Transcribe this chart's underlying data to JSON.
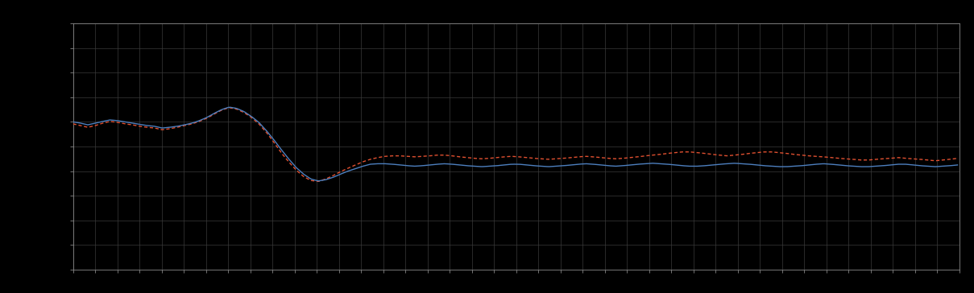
{
  "background_color": "#000000",
  "plot_bg_color": "#000000",
  "grid_color": "#3a3a3a",
  "line1_color": "#4d7fbe",
  "line2_color": "#e05030",
  "line_width": 1.0,
  "ylim": [
    0.0,
    10.0
  ],
  "xlim": [
    0,
    479
  ],
  "n_major_y": 10,
  "n_major_x": 40,
  "tick_color": "#888888",
  "tick_fontsize": 7,
  "spine_color": "#888888",
  "figsize": [
    12.09,
    3.64
  ],
  "dpi": 100,
  "blue_data": [
    6.0,
    5.95,
    5.88,
    5.95,
    6.02,
    6.08,
    6.05,
    6.0,
    5.95,
    5.9,
    5.85,
    5.82,
    5.75,
    5.78,
    5.82,
    5.88,
    5.95,
    6.05,
    6.18,
    6.35,
    6.5,
    6.6,
    6.55,
    6.42,
    6.22,
    5.98,
    5.65,
    5.28,
    4.88,
    4.5,
    4.15,
    3.88,
    3.68,
    3.6,
    3.65,
    3.75,
    3.88,
    4.0,
    4.1,
    4.2,
    4.28,
    4.3,
    4.3,
    4.28,
    4.25,
    4.22,
    4.2,
    4.22,
    4.25,
    4.28,
    4.3,
    4.28,
    4.25,
    4.22,
    4.2,
    4.18,
    4.2,
    4.22,
    4.25,
    4.28,
    4.28,
    4.25,
    4.22,
    4.2,
    4.18,
    4.2,
    4.22,
    4.25,
    4.28,
    4.3,
    4.28,
    4.25,
    4.22,
    4.2,
    4.22,
    4.25,
    4.28,
    4.3,
    4.32,
    4.3,
    4.28,
    4.25,
    4.22,
    4.2,
    4.2,
    4.22,
    4.25,
    4.28,
    4.3,
    4.32,
    4.3,
    4.28,
    4.25,
    4.22,
    4.2,
    4.18,
    4.18,
    4.2,
    4.22,
    4.25,
    4.28,
    4.3,
    4.28,
    4.25,
    4.22,
    4.2,
    4.18,
    4.18,
    4.2,
    4.22,
    4.25,
    4.28,
    4.28,
    4.25,
    4.22,
    4.2,
    4.18,
    4.2,
    4.22,
    4.25
  ],
  "red_data": [
    5.92,
    5.85,
    5.78,
    5.85,
    5.95,
    6.02,
    5.98,
    5.92,
    5.88,
    5.82,
    5.78,
    5.75,
    5.68,
    5.72,
    5.78,
    5.85,
    5.92,
    6.02,
    6.15,
    6.32,
    6.48,
    6.58,
    6.52,
    6.38,
    6.18,
    5.92,
    5.58,
    5.18,
    4.75,
    4.38,
    4.05,
    3.78,
    3.62,
    3.58,
    3.68,
    3.82,
    3.98,
    4.12,
    4.25,
    4.38,
    4.48,
    4.55,
    4.6,
    4.62,
    4.62,
    4.6,
    4.58,
    4.6,
    4.62,
    4.65,
    4.65,
    4.62,
    4.58,
    4.55,
    4.52,
    4.5,
    4.52,
    4.55,
    4.58,
    4.6,
    4.58,
    4.55,
    4.52,
    4.5,
    4.48,
    4.5,
    4.52,
    4.55,
    4.58,
    4.6,
    4.58,
    4.55,
    4.52,
    4.5,
    4.52,
    4.55,
    4.58,
    4.62,
    4.65,
    4.68,
    4.72,
    4.75,
    4.78,
    4.78,
    4.75,
    4.72,
    4.68,
    4.65,
    4.62,
    4.65,
    4.68,
    4.72,
    4.75,
    4.78,
    4.78,
    4.75,
    4.72,
    4.68,
    4.65,
    4.62,
    4.6,
    4.58,
    4.55,
    4.52,
    4.5,
    4.48,
    4.45,
    4.45,
    4.48,
    4.5,
    4.52,
    4.55,
    4.52,
    4.5,
    4.48,
    4.45,
    4.42,
    4.45,
    4.48,
    4.52
  ]
}
